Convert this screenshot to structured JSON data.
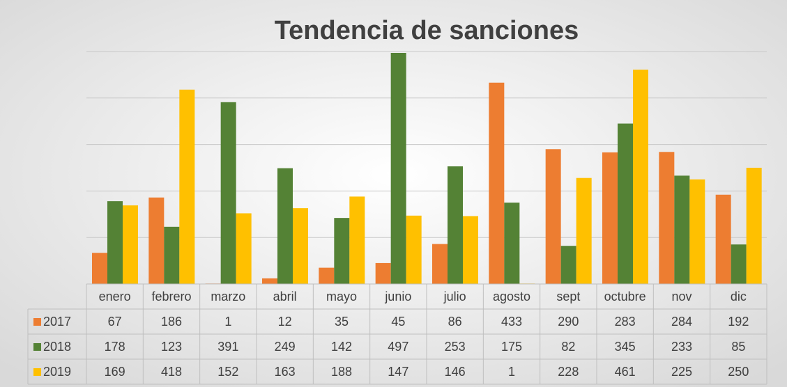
{
  "chart_data": {
    "type": "bar",
    "title": "Tendencia de sanciones",
    "categories": [
      "enero",
      "febrero",
      "marzo",
      "abril",
      "mayo",
      "junio",
      "julio",
      "agosto",
      "sept",
      "octubre",
      "nov",
      "dic"
    ],
    "series": [
      {
        "name": "2017",
        "color": "#ED7D31",
        "values": [
          67,
          186,
          1,
          12,
          35,
          45,
          86,
          433,
          290,
          283,
          284,
          192
        ]
      },
      {
        "name": "2018",
        "color": "#548235",
        "values": [
          178,
          123,
          391,
          249,
          142,
          497,
          253,
          175,
          82,
          345,
          233,
          85
        ]
      },
      {
        "name": "2019",
        "color": "#FFC000",
        "values": [
          169,
          418,
          152,
          163,
          188,
          147,
          146,
          1,
          228,
          461,
          225,
          250
        ]
      }
    ],
    "ylim": [
      0,
      500
    ],
    "yticks": [
      0,
      100,
      200,
      300,
      400,
      500
    ],
    "grid": true
  }
}
